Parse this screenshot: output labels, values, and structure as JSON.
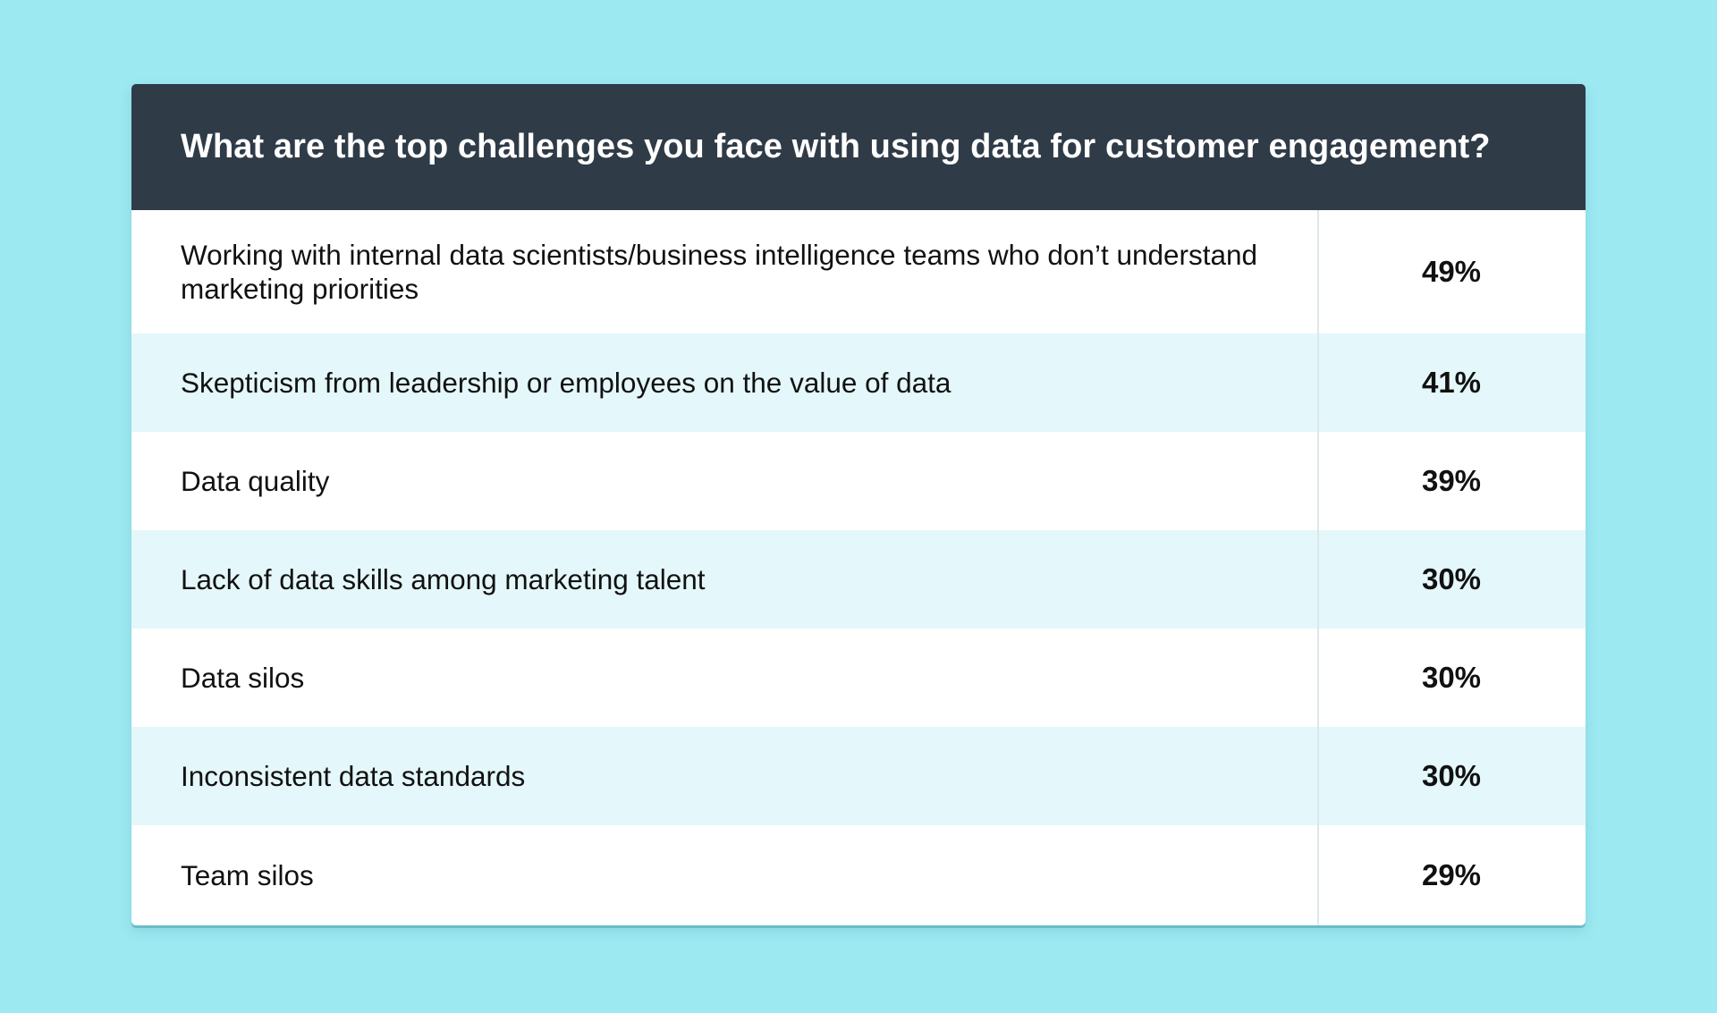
{
  "chart_data": {
    "type": "table",
    "title": "What are the top challenges you face with using data for customer engagement?",
    "rows": [
      {
        "label": "Working with internal data scientists/business intelligence teams who don’t understand marketing priorities",
        "value": 49,
        "display": "49%"
      },
      {
        "label": "Skepticism from leadership or employees on the value of data",
        "value": 41,
        "display": "41%"
      },
      {
        "label": "Data quality",
        "value": 39,
        "display": "39%"
      },
      {
        "label": "Lack of data skills among marketing talent",
        "value": 30,
        "display": "30%"
      },
      {
        "label": "Data silos",
        "value": 30,
        "display": "30%"
      },
      {
        "label": "Inconsistent data standards",
        "value": 30,
        "display": "30%"
      },
      {
        "label": "Team silos",
        "value": 29,
        "display": "29%"
      }
    ]
  },
  "colors": {
    "background": "#9de9f2",
    "header": "#2f3b47",
    "row_alt": "#e4f7fa",
    "row": "#ffffff"
  }
}
